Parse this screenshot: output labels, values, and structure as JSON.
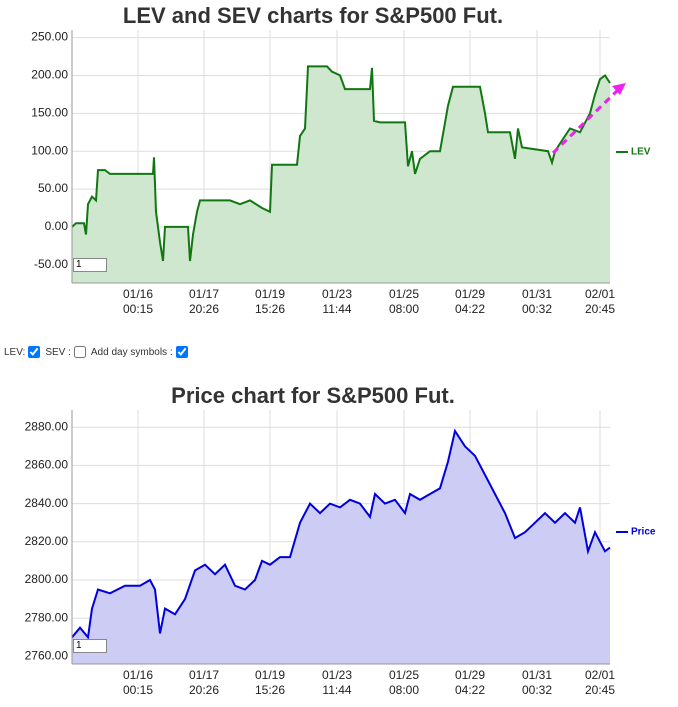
{
  "chart_data": [
    {
      "type": "area",
      "title": "LEV and SEV charts for S&P500 Fut.",
      "x": [
        0,
        4,
        12,
        14,
        16,
        20,
        24,
        26,
        33,
        38,
        53,
        81,
        82,
        84,
        88,
        91,
        93,
        116,
        118,
        121,
        125,
        128,
        158,
        168,
        178,
        190,
        198,
        200,
        225,
        228,
        233,
        236,
        255,
        260,
        268,
        273,
        298,
        300,
        302,
        308,
        333,
        336,
        340,
        343,
        348,
        358,
        368,
        376,
        381,
        408,
        413,
        416,
        438,
        443,
        446,
        450,
        476,
        480,
        483,
        488,
        498,
        508,
        518,
        523,
        528,
        533,
        538
      ],
      "series": [
        {
          "name": "LEV",
          "color": "#117711",
          "fill": "#cfe6cf",
          "values": [
            0,
            5,
            5,
            -10,
            30,
            40,
            35,
            75,
            75,
            70,
            70,
            70,
            92,
            20,
            -20,
            -45,
            0,
            0,
            -45,
            -10,
            20,
            35,
            35,
            30,
            35,
            25,
            20,
            82,
            82,
            120,
            130,
            212,
            212,
            205,
            200,
            182,
            182,
            210,
            140,
            138,
            138,
            80,
            100,
            70,
            90,
            100,
            100,
            160,
            185,
            185,
            150,
            125,
            125,
            90,
            130,
            105,
            100,
            85,
            100,
            110,
            130,
            125,
            150,
            175,
            195,
            200,
            190
          ]
        }
      ],
      "xlim": [
        0,
        538
      ],
      "xticks": [
        {
          "value": 66,
          "label": "01/16\n00:15"
        },
        {
          "value": 132,
          "label": "01/17\n20:26"
        },
        {
          "value": 198,
          "label": "01/19\n15:26"
        },
        {
          "value": 265,
          "label": "01/23\n11:44"
        },
        {
          "value": 332,
          "label": "01/25\n08:00"
        },
        {
          "value": 398,
          "label": "01/29\n04:22"
        },
        {
          "value": 465,
          "label": "01/31\n00:32"
        },
        {
          "value": 528,
          "label": "02/01\n20:45"
        }
      ],
      "ylim": [
        -74,
        260
      ],
      "yticks": [
        {
          "value": -50,
          "label": "-50.00"
        },
        {
          "value": 0,
          "label": "0.00"
        },
        {
          "value": 50,
          "label": "50.00"
        },
        {
          "value": 100,
          "label": "100.00"
        },
        {
          "value": 150,
          "label": "150.00"
        },
        {
          "value": 200,
          "label": "200.00"
        },
        {
          "value": 250,
          "label": "250.00"
        }
      ],
      "grid": true,
      "zoom_input": "1"
    },
    {
      "type": "area",
      "title": "Price chart for S&P500 Fut.",
      "x": [
        0,
        8,
        16,
        20,
        26,
        38,
        53,
        68,
        78,
        83,
        88,
        93,
        103,
        113,
        123,
        133,
        143,
        153,
        163,
        173,
        183,
        190,
        198,
        208,
        218,
        228,
        238,
        248,
        258,
        268,
        278,
        288,
        298,
        303,
        313,
        323,
        333,
        338,
        348,
        358,
        368,
        376,
        383,
        393,
        403,
        413,
        423,
        433,
        443,
        453,
        463,
        473,
        483,
        493,
        503,
        508,
        516,
        523,
        528,
        533,
        538
      ],
      "series": [
        {
          "name": "Price",
          "color": "#0000dd",
          "fill": "#ccccf5",
          "values": [
            2770,
            2775,
            2770,
            2785,
            2795,
            2793,
            2797,
            2797,
            2800,
            2795,
            2772,
            2785,
            2782,
            2790,
            2805,
            2808,
            2803,
            2808,
            2797,
            2795,
            2800,
            2810,
            2808,
            2812,
            2812,
            2830,
            2840,
            2835,
            2840,
            2838,
            2842,
            2840,
            2833,
            2845,
            2840,
            2842,
            2835,
            2845,
            2842,
            2845,
            2848,
            2862,
            2878,
            2870,
            2865,
            2855,
            2845,
            2835,
            2822,
            2825,
            2830,
            2835,
            2830,
            2835,
            2830,
            2838,
            2815,
            2825,
            2820,
            2815,
            2817
          ]
        }
      ],
      "xlim": [
        0,
        538
      ],
      "xticks": [
        {
          "value": 66,
          "label": "01/16\n00:15"
        },
        {
          "value": 132,
          "label": "01/17\n20:26"
        },
        {
          "value": 198,
          "label": "01/19\n15:26"
        },
        {
          "value": 265,
          "label": "01/23\n11:44"
        },
        {
          "value": 332,
          "label": "01/25\n08:00"
        },
        {
          "value": 398,
          "label": "01/29\n04:22"
        },
        {
          "value": 465,
          "label": "01/31\n00:32"
        },
        {
          "value": 528,
          "label": "02/01\n20:45"
        }
      ],
      "ylim": [
        2756,
        2889
      ],
      "yticks": [
        {
          "value": 2760,
          "label": "2760.00"
        },
        {
          "value": 2780,
          "label": "2780.00"
        },
        {
          "value": 2800,
          "label": "2800.00"
        },
        {
          "value": 2820,
          "label": "2820.00"
        },
        {
          "value": 2840,
          "label": "2840.00"
        },
        {
          "value": 2860,
          "label": "2860.00"
        },
        {
          "value": 2880,
          "label": "2880.00"
        }
      ],
      "grid": true,
      "zoom_input": "1"
    }
  ],
  "controls": {
    "lev_label": "LEV:",
    "lev_checked": true,
    "sev_label": "SEV :",
    "sev_checked": false,
    "day_label": "Add day symbols :",
    "day_checked": true
  }
}
